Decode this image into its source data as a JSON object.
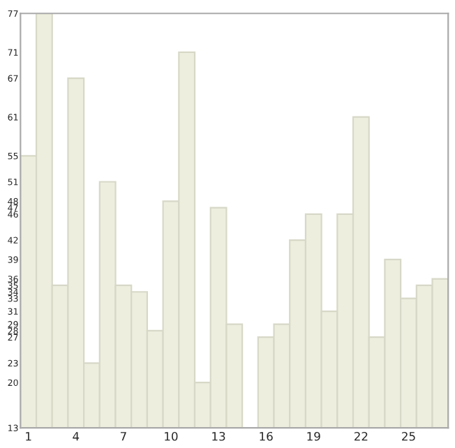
{
  "chart_data": {
    "type": "bar",
    "categories": [
      "1",
      null,
      null,
      "4",
      null,
      null,
      "7",
      null,
      null,
      "10",
      null,
      null,
      "13",
      null,
      null,
      "16",
      null,
      null,
      "19",
      null,
      null,
      "22",
      null,
      null,
      "25",
      null,
      null
    ],
    "values": [
      55,
      77,
      35,
      67,
      23,
      51,
      35,
      34,
      28,
      48,
      71,
      20,
      47,
      29,
      13,
      27,
      29,
      42,
      46,
      31,
      46,
      61,
      27,
      39,
      33,
      35,
      36
    ],
    "color": "#eeeedf",
    "ylim": [
      13,
      77
    ],
    "yticks": [
      13,
      20,
      23,
      27,
      28,
      29,
      31,
      33,
      34,
      35,
      36,
      39,
      42,
      46,
      47,
      48,
      51,
      55,
      61,
      67,
      71,
      77
    ],
    "grid": false,
    "legend": false
  }
}
